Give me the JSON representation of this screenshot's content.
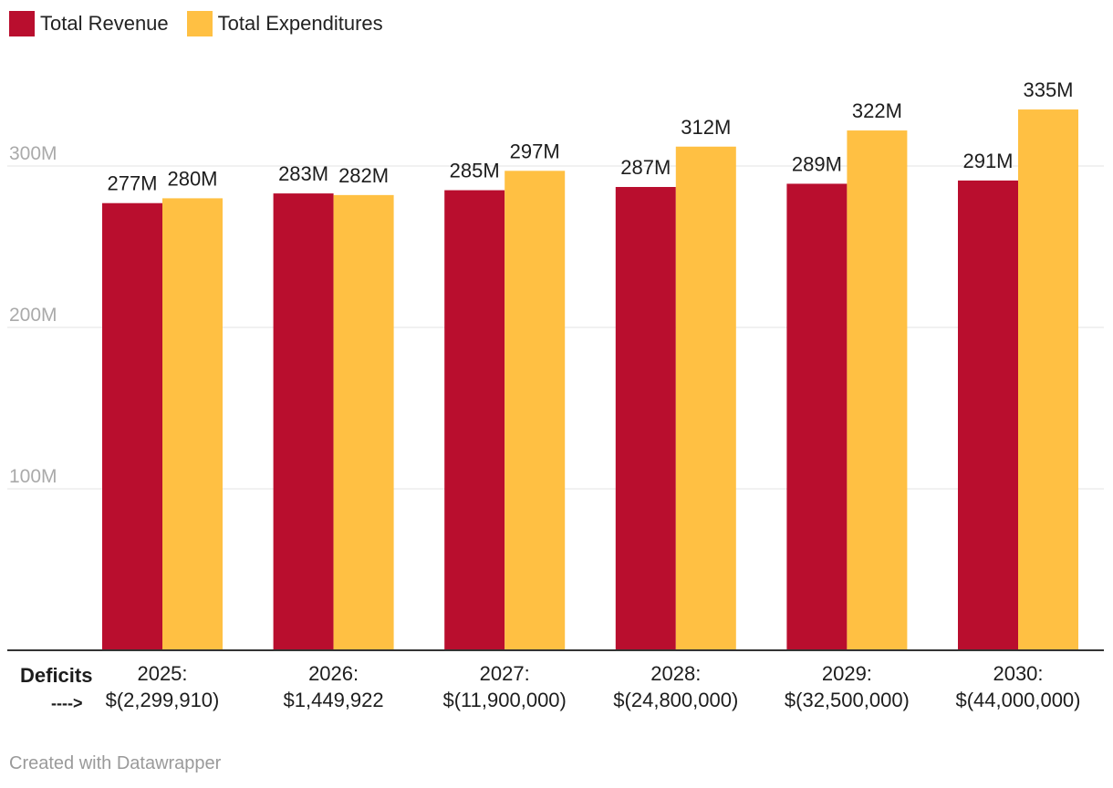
{
  "legend": [
    {
      "name": "Total Revenue",
      "color": "#b90e2e"
    },
    {
      "name": "Total Expenditures",
      "color": "#ffc043"
    }
  ],
  "chart_data": {
    "type": "bar",
    "categories": [
      "2025",
      "2026",
      "2027",
      "2028",
      "2029",
      "2030"
    ],
    "category_labels": [
      [
        "2025:",
        "$(2,299,910)"
      ],
      [
        "2026:",
        "$1,449,922"
      ],
      [
        "2027:",
        "$(11,900,000)"
      ],
      [
        "2028:",
        "$(24,800,000)"
      ],
      [
        "2029:",
        "$(32,500,000)"
      ],
      [
        "2030:",
        "$(44,000,000)"
      ]
    ],
    "series": [
      {
        "name": "Total Revenue",
        "color": "#b90e2e",
        "values": [
          277,
          283,
          285,
          287,
          289,
          291
        ],
        "labels": [
          "277M",
          "283M",
          "285M",
          "287M",
          "289M",
          "291M"
        ]
      },
      {
        "name": "Total Expenditures",
        "color": "#ffc043",
        "values": [
          280,
          282,
          297,
          312,
          322,
          335
        ],
        "labels": [
          "280M",
          "282M",
          "297M",
          "312M",
          "322M",
          "335M"
        ]
      }
    ],
    "ylim": [
      0,
      335
    ],
    "yticks": [
      100,
      200,
      300
    ],
    "ytick_labels": [
      "100M",
      "200M",
      "300M"
    ],
    "grid": true,
    "annotation": {
      "line1": "Deficits",
      "line2": "---->"
    },
    "title": "",
    "xlabel": "",
    "ylabel": ""
  },
  "footer": "Created with Datawrapper"
}
